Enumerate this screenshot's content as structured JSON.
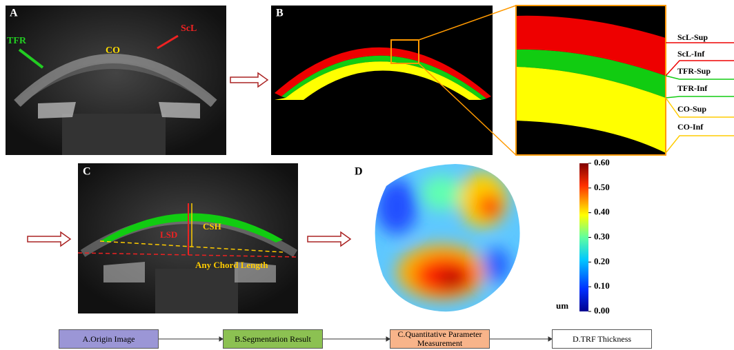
{
  "panel_a": {
    "label": "A",
    "tfr": "TFR",
    "scl": "ScL",
    "co": "CO"
  },
  "panel_b": {
    "label": "B"
  },
  "zoom_labels": [
    "ScL-Sup",
    "ScL-Inf",
    "TFR-Sup",
    "TFR-Inf",
    "CO-Sup",
    "CO-Inf"
  ],
  "panel_c": {
    "label": "C",
    "lsd": "LSD",
    "csh": "CSH",
    "chord": "Any Chord Length"
  },
  "panel_d": {
    "label": "D",
    "unit": "um",
    "colorbar_ticks": [
      {
        "value": 0.6,
        "label": "0.60"
      },
      {
        "value": 0.5,
        "label": "0.50"
      },
      {
        "value": 0.4,
        "label": "0.40"
      },
      {
        "value": 0.3,
        "label": "0.30"
      },
      {
        "value": 0.2,
        "label": "0.20"
      },
      {
        "value": 0.1,
        "label": "0.10"
      },
      {
        "value": 0,
        "label": "0.00"
      }
    ]
  },
  "flow": [
    "A.Origin Image",
    "B.Segmentation Result",
    "C.Quantitative Parameter Measurement",
    "D.TRF Thickness"
  ]
}
